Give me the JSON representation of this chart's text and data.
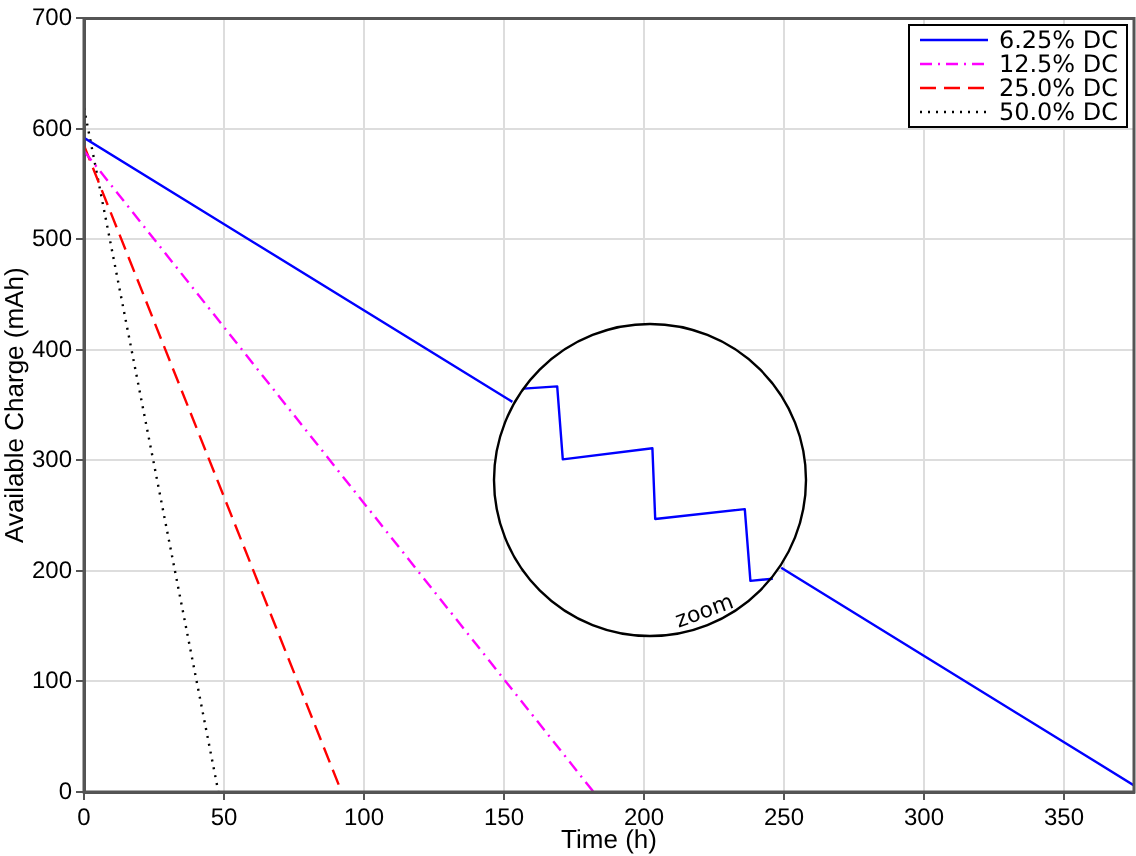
{
  "chart_data": {
    "type": "line",
    "xlabel": "Time (h)",
    "ylabel": "Available Charge (mAh)",
    "xlim": [
      0,
      375
    ],
    "ylim": [
      0,
      700
    ],
    "xticks": [
      0,
      50,
      100,
      150,
      200,
      250,
      300,
      350
    ],
    "yticks": [
      0,
      100,
      200,
      300,
      400,
      500,
      600,
      700
    ],
    "grid": true,
    "legend": "top right",
    "marker": "none",
    "annotations": [
      "zoom"
    ],
    "series": [
      {
        "name": "6.25% DC",
        "color": "#0000ff",
        "line_style": "solid",
        "x": [
          0,
          153,
          200,
          249,
          375
        ],
        "values": [
          592,
          353,
          null,
          203,
          6
        ]
      },
      {
        "name": "12.5% DC",
        "color": "#ff00ff",
        "line_style": "dashdot",
        "x": [
          0,
          182
        ],
        "values": [
          580,
          0
        ]
      },
      {
        "name": "25.0% DC",
        "color": "#ff0000",
        "line_style": "dashed",
        "x": [
          0,
          92
        ],
        "values": [
          585,
          0
        ]
      },
      {
        "name": "50.0% DC",
        "color": "#000000",
        "line_style": "dotted",
        "x": [
          0,
          48
        ],
        "values": [
          619,
          0
        ]
      },
      {
        "color": "#0000ff",
        "line_style": "solid",
        "x": [
          157,
          169,
          171,
          203,
          204,
          236,
          238,
          246
        ],
        "values": [
          365,
          367,
          301,
          311,
          247,
          256,
          191,
          193
        ]
      }
    ]
  }
}
